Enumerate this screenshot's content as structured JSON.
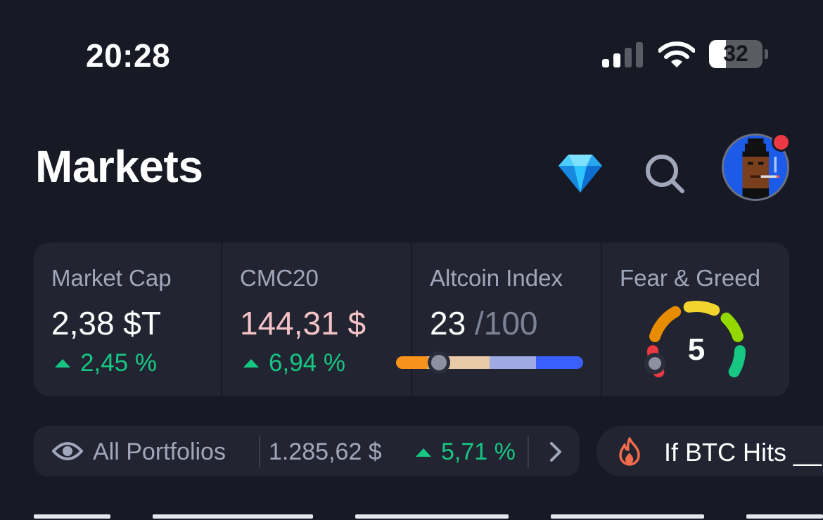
{
  "status_bar": {
    "time": "20:28",
    "battery_level": "32",
    "icons": [
      "cellular-signal-icon",
      "wifi-icon",
      "battery-icon"
    ]
  },
  "header": {
    "title": "Markets",
    "icons": [
      "diamond-icon",
      "search-icon",
      "avatar"
    ]
  },
  "stats": {
    "market_cap": {
      "label": "Market Cap",
      "value": "2,38 $T",
      "change": "2,45 %"
    },
    "cmc20": {
      "label": "CMC20",
      "value": "144,31 $",
      "change": "6,94 %"
    },
    "altcoin_index": {
      "label": "Altcoin Index",
      "value": "23",
      "suffix": "/100",
      "level": 0.23
    },
    "fear_greed": {
      "label": "Fear & Greed",
      "value": "5",
      "level": 0.05
    }
  },
  "portfolio": {
    "label": "All Portfolios",
    "value": "1.285,62 $",
    "change": "5,71 %"
  },
  "promo": {
    "label": "If BTC Hits __"
  },
  "colors": {
    "background": "#171924",
    "card": "#222531",
    "positive": "#16c784",
    "cmc20_value": "#f4c2c6",
    "muted": "#a1a7bb",
    "alert": "#ea3943"
  }
}
